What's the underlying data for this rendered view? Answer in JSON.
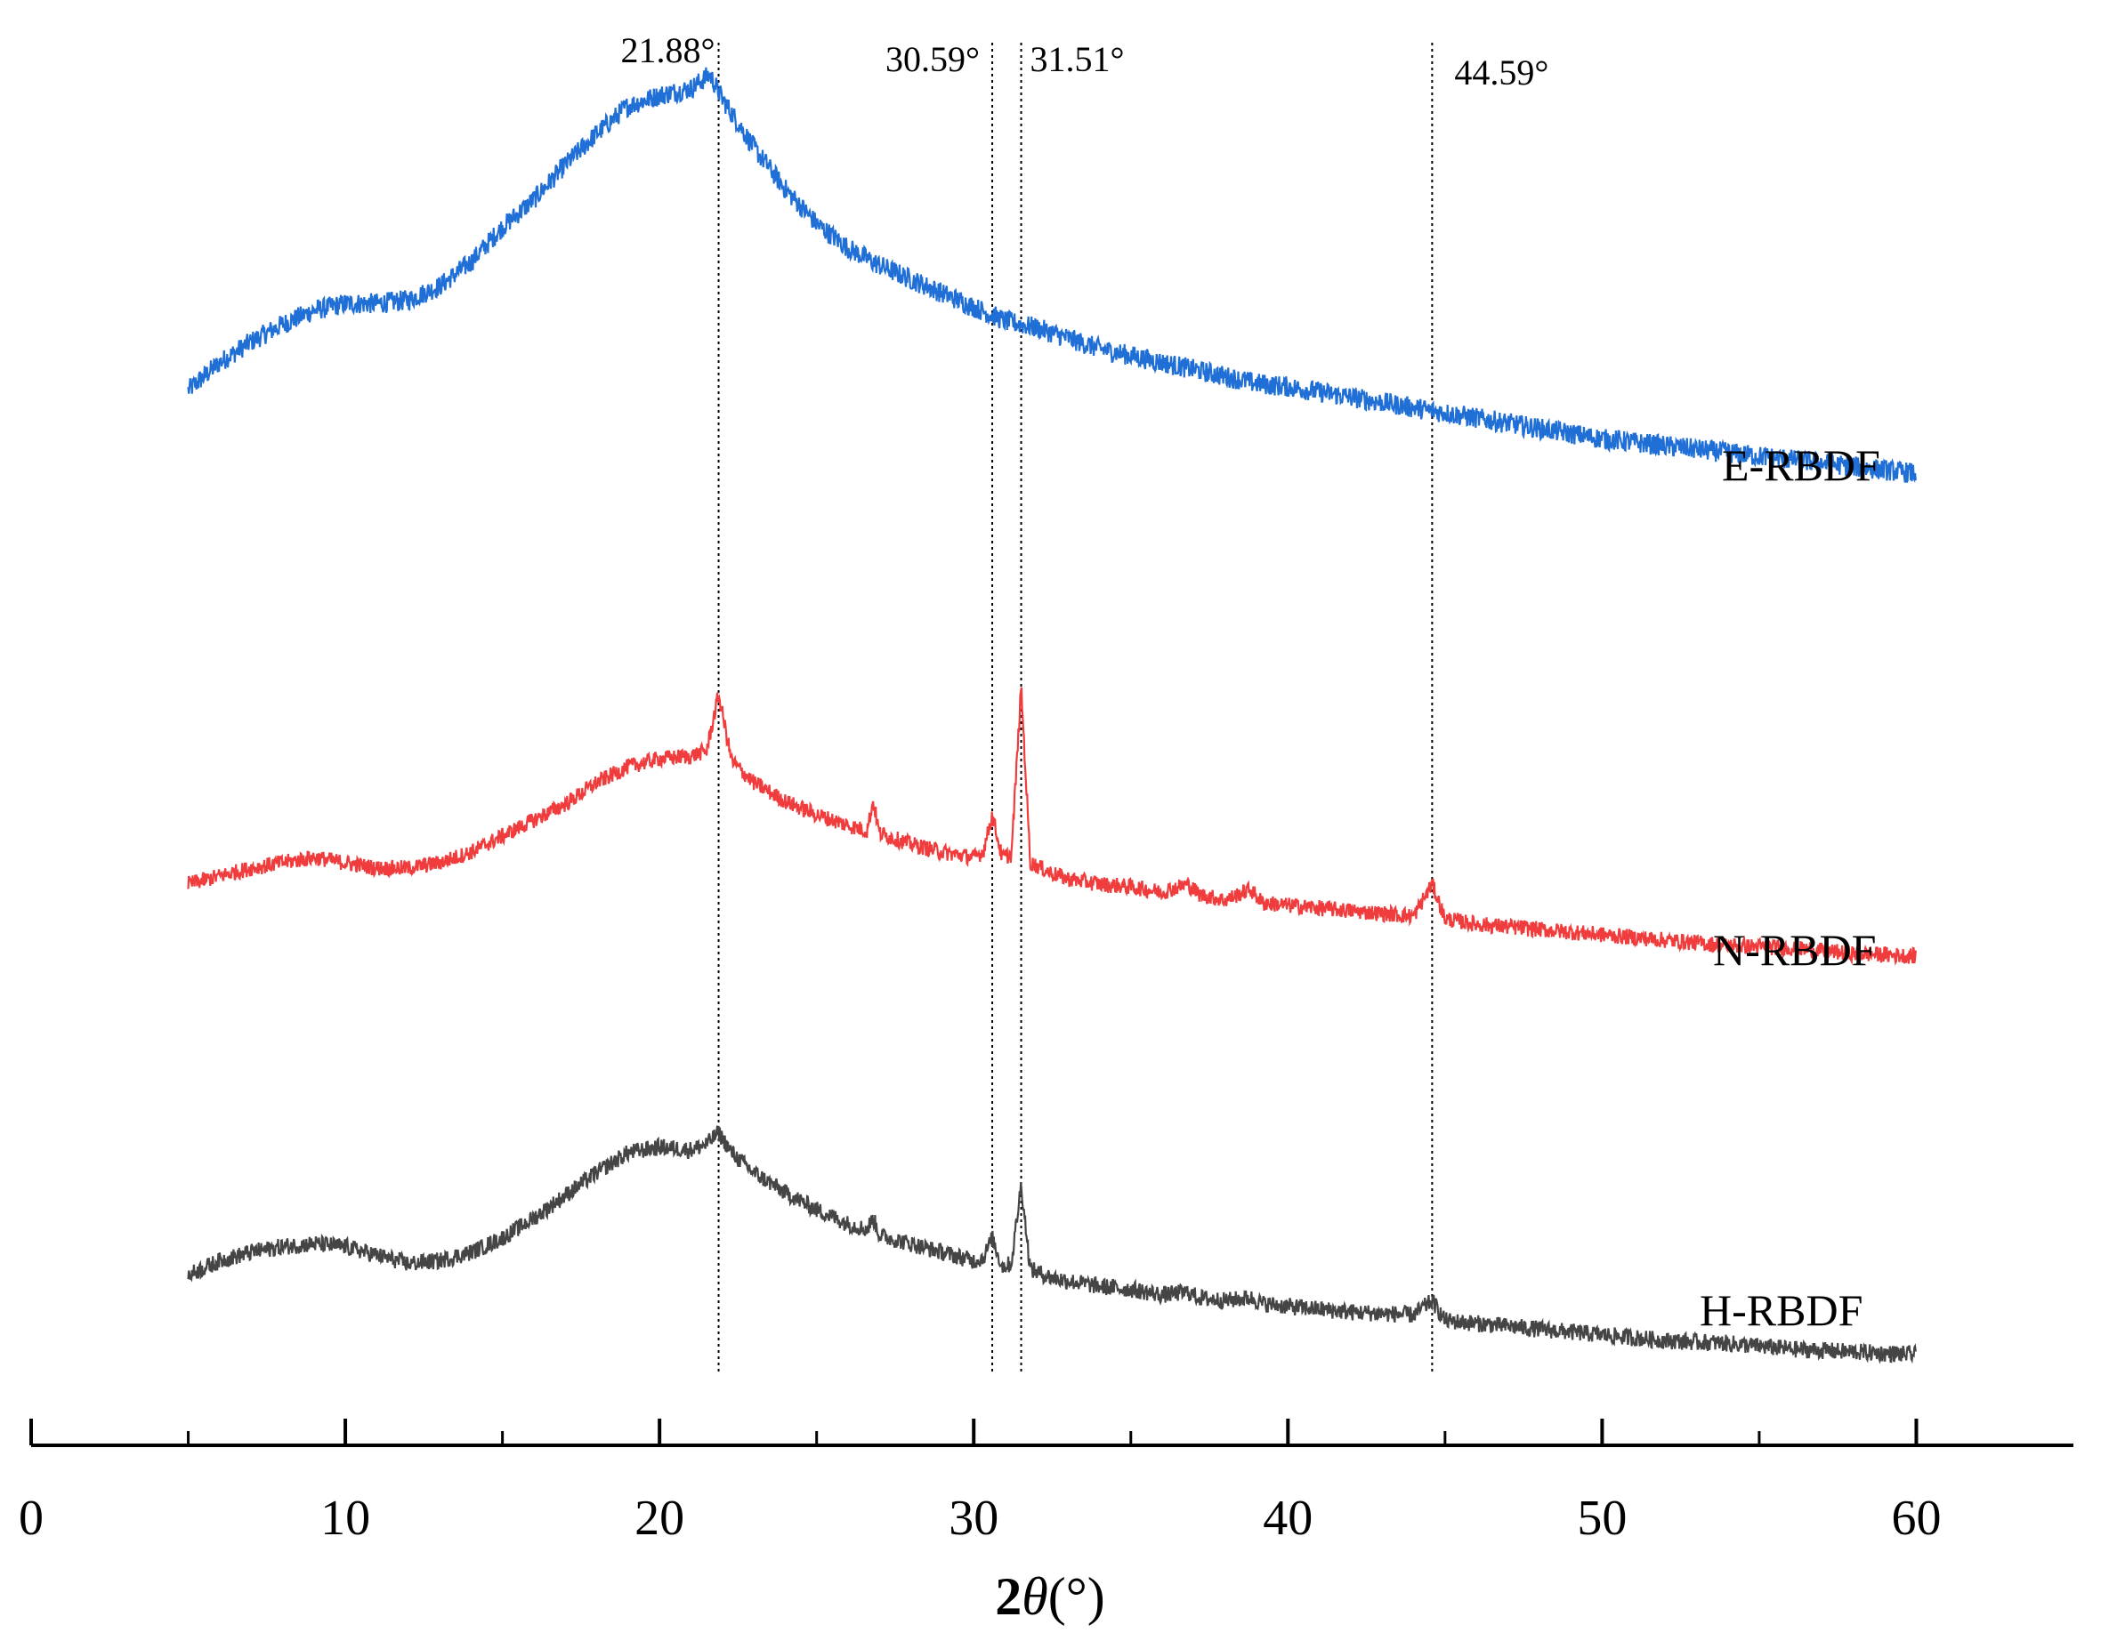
{
  "chart_data": {
    "type": "line",
    "xlabel": {
      "prefix": "2",
      "symbol": "θ",
      "unit": "(°)"
    },
    "ylabel": "",
    "xlim": [
      0,
      65
    ],
    "xticks": [
      0,
      10,
      20,
      30,
      40,
      50,
      60
    ],
    "xtick_labels": [
      "0",
      "10",
      "20",
      "30",
      "40",
      "50",
      "60"
    ],
    "minor_xticks": [
      5,
      15,
      25,
      35,
      45,
      55
    ],
    "grid": false,
    "y_axis_shown": false,
    "reference_lines": [
      {
        "x": 21.88,
        "label": "21.88°"
      },
      {
        "x": 30.59,
        "label": "30.59°"
      },
      {
        "x": 31.51,
        "label": "31.51°"
      },
      {
        "x": 44.59,
        "label": "44.59°"
      }
    ],
    "series": [
      {
        "name": "E-RBDF",
        "color": "#1f6fd6",
        "points": [
          [
            5,
            0.08
          ],
          [
            6,
            0.16
          ],
          [
            7,
            0.22
          ],
          [
            8,
            0.27
          ],
          [
            9,
            0.31
          ],
          [
            10,
            0.33
          ],
          [
            11,
            0.33
          ],
          [
            12,
            0.34
          ],
          [
            13,
            0.38
          ],
          [
            14,
            0.45
          ],
          [
            15,
            0.55
          ],
          [
            16,
            0.63
          ],
          [
            17,
            0.73
          ],
          [
            18,
            0.82
          ],
          [
            19,
            0.9
          ],
          [
            20,
            0.93
          ],
          [
            21,
            0.95
          ],
          [
            21.6,
            0.99
          ],
          [
            22,
            0.92
          ],
          [
            23,
            0.78
          ],
          [
            24,
            0.66
          ],
          [
            25,
            0.56
          ],
          [
            26,
            0.49
          ],
          [
            27,
            0.44
          ],
          [
            28,
            0.4
          ],
          [
            29,
            0.36
          ],
          [
            30,
            0.32
          ],
          [
            31,
            0.28
          ],
          [
            32,
            0.26
          ],
          [
            33,
            0.23
          ],
          [
            34,
            0.2
          ],
          [
            35,
            0.18
          ],
          [
            36,
            0.16
          ],
          [
            37,
            0.14
          ],
          [
            38,
            0.12
          ],
          [
            39,
            0.1
          ],
          [
            40,
            0.09
          ],
          [
            42,
            0.06
          ],
          [
            44,
            0.03
          ],
          [
            46,
            0.0
          ],
          [
            48,
            -0.03
          ],
          [
            50,
            -0.06
          ],
          [
            52,
            -0.08
          ],
          [
            54,
            -0.1
          ],
          [
            56,
            -0.12
          ],
          [
            58,
            -0.14
          ],
          [
            60,
            -0.16
          ]
        ]
      },
      {
        "name": "N-RBDF",
        "color": "#f03c3c",
        "points": [
          [
            5,
            0.02
          ],
          [
            6,
            0.05
          ],
          [
            7,
            0.08
          ],
          [
            8,
            0.1
          ],
          [
            9,
            0.12
          ],
          [
            10,
            0.1
          ],
          [
            11,
            0.08
          ],
          [
            12,
            0.08
          ],
          [
            13,
            0.1
          ],
          [
            14,
            0.14
          ],
          [
            15,
            0.2
          ],
          [
            16,
            0.26
          ],
          [
            17,
            0.32
          ],
          [
            18,
            0.4
          ],
          [
            19,
            0.46
          ],
          [
            20,
            0.49
          ],
          [
            21,
            0.5
          ],
          [
            21.5,
            0.52
          ],
          [
            21.88,
            0.73
          ],
          [
            22.3,
            0.48
          ],
          [
            23,
            0.4
          ],
          [
            24,
            0.33
          ],
          [
            25,
            0.28
          ],
          [
            26,
            0.24
          ],
          [
            26.6,
            0.22
          ],
          [
            26.8,
            0.33
          ],
          [
            27,
            0.21
          ],
          [
            28,
            0.17
          ],
          [
            29,
            0.14
          ],
          [
            30,
            0.12
          ],
          [
            30.3,
            0.14
          ],
          [
            30.59,
            0.28
          ],
          [
            30.9,
            0.12
          ],
          [
            31.2,
            0.13
          ],
          [
            31.51,
            0.76
          ],
          [
            31.8,
            0.1
          ],
          [
            32.5,
            0.06
          ],
          [
            33,
            0.04
          ],
          [
            34,
            0.02
          ],
          [
            35,
            0.01
          ],
          [
            36,
            -0.01
          ],
          [
            36.8,
            0.02
          ],
          [
            37.2,
            -0.02
          ],
          [
            38,
            -0.04
          ],
          [
            38.8,
            0.0
          ],
          [
            39.2,
            -0.05
          ],
          [
            40,
            -0.06
          ],
          [
            42,
            -0.08
          ],
          [
            44,
            -0.1
          ],
          [
            44.59,
            0.02
          ],
          [
            45,
            -0.11
          ],
          [
            46,
            -0.13
          ],
          [
            48,
            -0.15
          ],
          [
            50,
            -0.17
          ],
          [
            52,
            -0.19
          ],
          [
            54,
            -0.21
          ],
          [
            56,
            -0.22
          ],
          [
            58,
            -0.24
          ],
          [
            60,
            -0.25
          ]
        ]
      },
      {
        "name": "H-RBDF",
        "color": "#454545",
        "points": [
          [
            5,
            0.02
          ],
          [
            6,
            0.07
          ],
          [
            7,
            0.1
          ],
          [
            8,
            0.12
          ],
          [
            9,
            0.13
          ],
          [
            10,
            0.12
          ],
          [
            11,
            0.09
          ],
          [
            12,
            0.06
          ],
          [
            13,
            0.07
          ],
          [
            14,
            0.1
          ],
          [
            15,
            0.15
          ],
          [
            16,
            0.22
          ],
          [
            17,
            0.3
          ],
          [
            18,
            0.38
          ],
          [
            19,
            0.45
          ],
          [
            20,
            0.47
          ],
          [
            21,
            0.46
          ],
          [
            21.5,
            0.48
          ],
          [
            21.88,
            0.52
          ],
          [
            22.3,
            0.45
          ],
          [
            23,
            0.38
          ],
          [
            24,
            0.31
          ],
          [
            25,
            0.25
          ],
          [
            26,
            0.2
          ],
          [
            26.6,
            0.18
          ],
          [
            26.8,
            0.22
          ],
          [
            27,
            0.16
          ],
          [
            28,
            0.13
          ],
          [
            29,
            0.1
          ],
          [
            30,
            0.07
          ],
          [
            30.3,
            0.08
          ],
          [
            30.59,
            0.15
          ],
          [
            30.9,
            0.05
          ],
          [
            31.2,
            0.06
          ],
          [
            31.51,
            0.34
          ],
          [
            31.8,
            0.04
          ],
          [
            32.5,
            0.01
          ],
          [
            33,
            0.0
          ],
          [
            34,
            -0.02
          ],
          [
            35,
            -0.03
          ],
          [
            36,
            -0.05
          ],
          [
            36.8,
            -0.04
          ],
          [
            37.2,
            -0.06
          ],
          [
            38,
            -0.07
          ],
          [
            38.8,
            -0.06
          ],
          [
            39.2,
            -0.08
          ],
          [
            40,
            -0.09
          ],
          [
            42,
            -0.11
          ],
          [
            44,
            -0.12
          ],
          [
            44.59,
            -0.07
          ],
          [
            45,
            -0.14
          ],
          [
            46,
            -0.15
          ],
          [
            48,
            -0.17
          ],
          [
            50,
            -0.19
          ],
          [
            52,
            -0.21
          ],
          [
            54,
            -0.22
          ],
          [
            56,
            -0.24
          ],
          [
            58,
            -0.25
          ],
          [
            60,
            -0.26
          ]
        ]
      }
    ]
  }
}
